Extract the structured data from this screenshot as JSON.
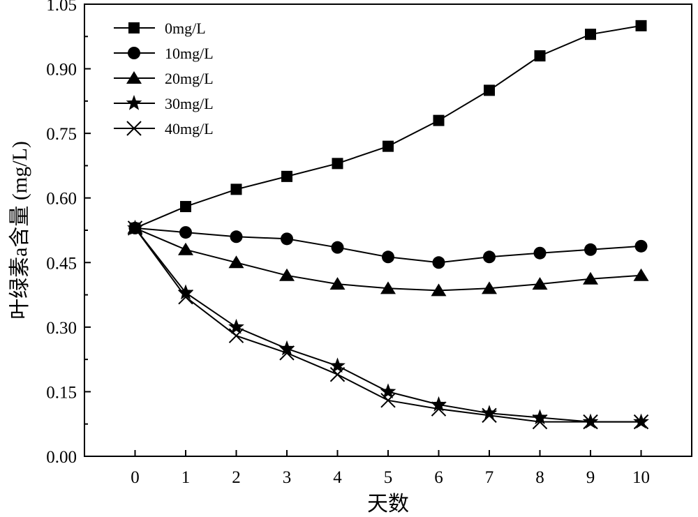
{
  "chart_data": {
    "type": "line",
    "title": "",
    "xlabel": "天数",
    "ylabel": "叶绿素a含量 (mg/L)",
    "xlim": [
      -1,
      11
    ],
    "ylim": [
      0,
      1.05
    ],
    "x_ticks": [
      0,
      1,
      2,
      3,
      4,
      5,
      6,
      7,
      8,
      9,
      10
    ],
    "x_tick_labels": [
      "0",
      "1",
      "2",
      "3",
      "4",
      "5",
      "6",
      "7",
      "8",
      "9",
      "10"
    ],
    "y_ticks": [
      0,
      0.15,
      0.3,
      0.45,
      0.6,
      0.75,
      0.9,
      1.05
    ],
    "y_tick_labels": [
      "0.00",
      "0.15",
      "0.30",
      "0.45",
      "0.60",
      "0.75",
      "0.90",
      "1.05"
    ],
    "grid": false,
    "legend_position": "top-left",
    "x": [
      0,
      1,
      2,
      3,
      4,
      5,
      6,
      7,
      8,
      9,
      10
    ],
    "series": [
      {
        "name": "0mg/L",
        "marker": "square",
        "values": [
          0.53,
          0.58,
          0.62,
          0.65,
          0.68,
          0.72,
          0.78,
          0.85,
          0.93,
          0.98,
          1.0
        ]
      },
      {
        "name": "10mg/L",
        "marker": "circle",
        "values": [
          0.53,
          0.52,
          0.51,
          0.505,
          0.485,
          0.463,
          0.45,
          0.463,
          0.472,
          0.48,
          0.488
        ]
      },
      {
        "name": "20mg/L",
        "marker": "triangle",
        "values": [
          0.53,
          0.48,
          0.45,
          0.42,
          0.4,
          0.39,
          0.385,
          0.39,
          0.4,
          0.412,
          0.42
        ]
      },
      {
        "name": "30mg/L",
        "marker": "star",
        "values": [
          0.53,
          0.38,
          0.3,
          0.25,
          0.21,
          0.15,
          0.12,
          0.1,
          0.09,
          0.08,
          0.08
        ]
      },
      {
        "name": "40mg/L",
        "marker": "x",
        "values": [
          0.53,
          0.37,
          0.28,
          0.24,
          0.19,
          0.13,
          0.11,
          0.095,
          0.08,
          0.08,
          0.08
        ]
      }
    ],
    "colors": {
      "line": "#000000",
      "marker": "#000000",
      "axis": "#000000",
      "background": "#ffffff"
    }
  }
}
